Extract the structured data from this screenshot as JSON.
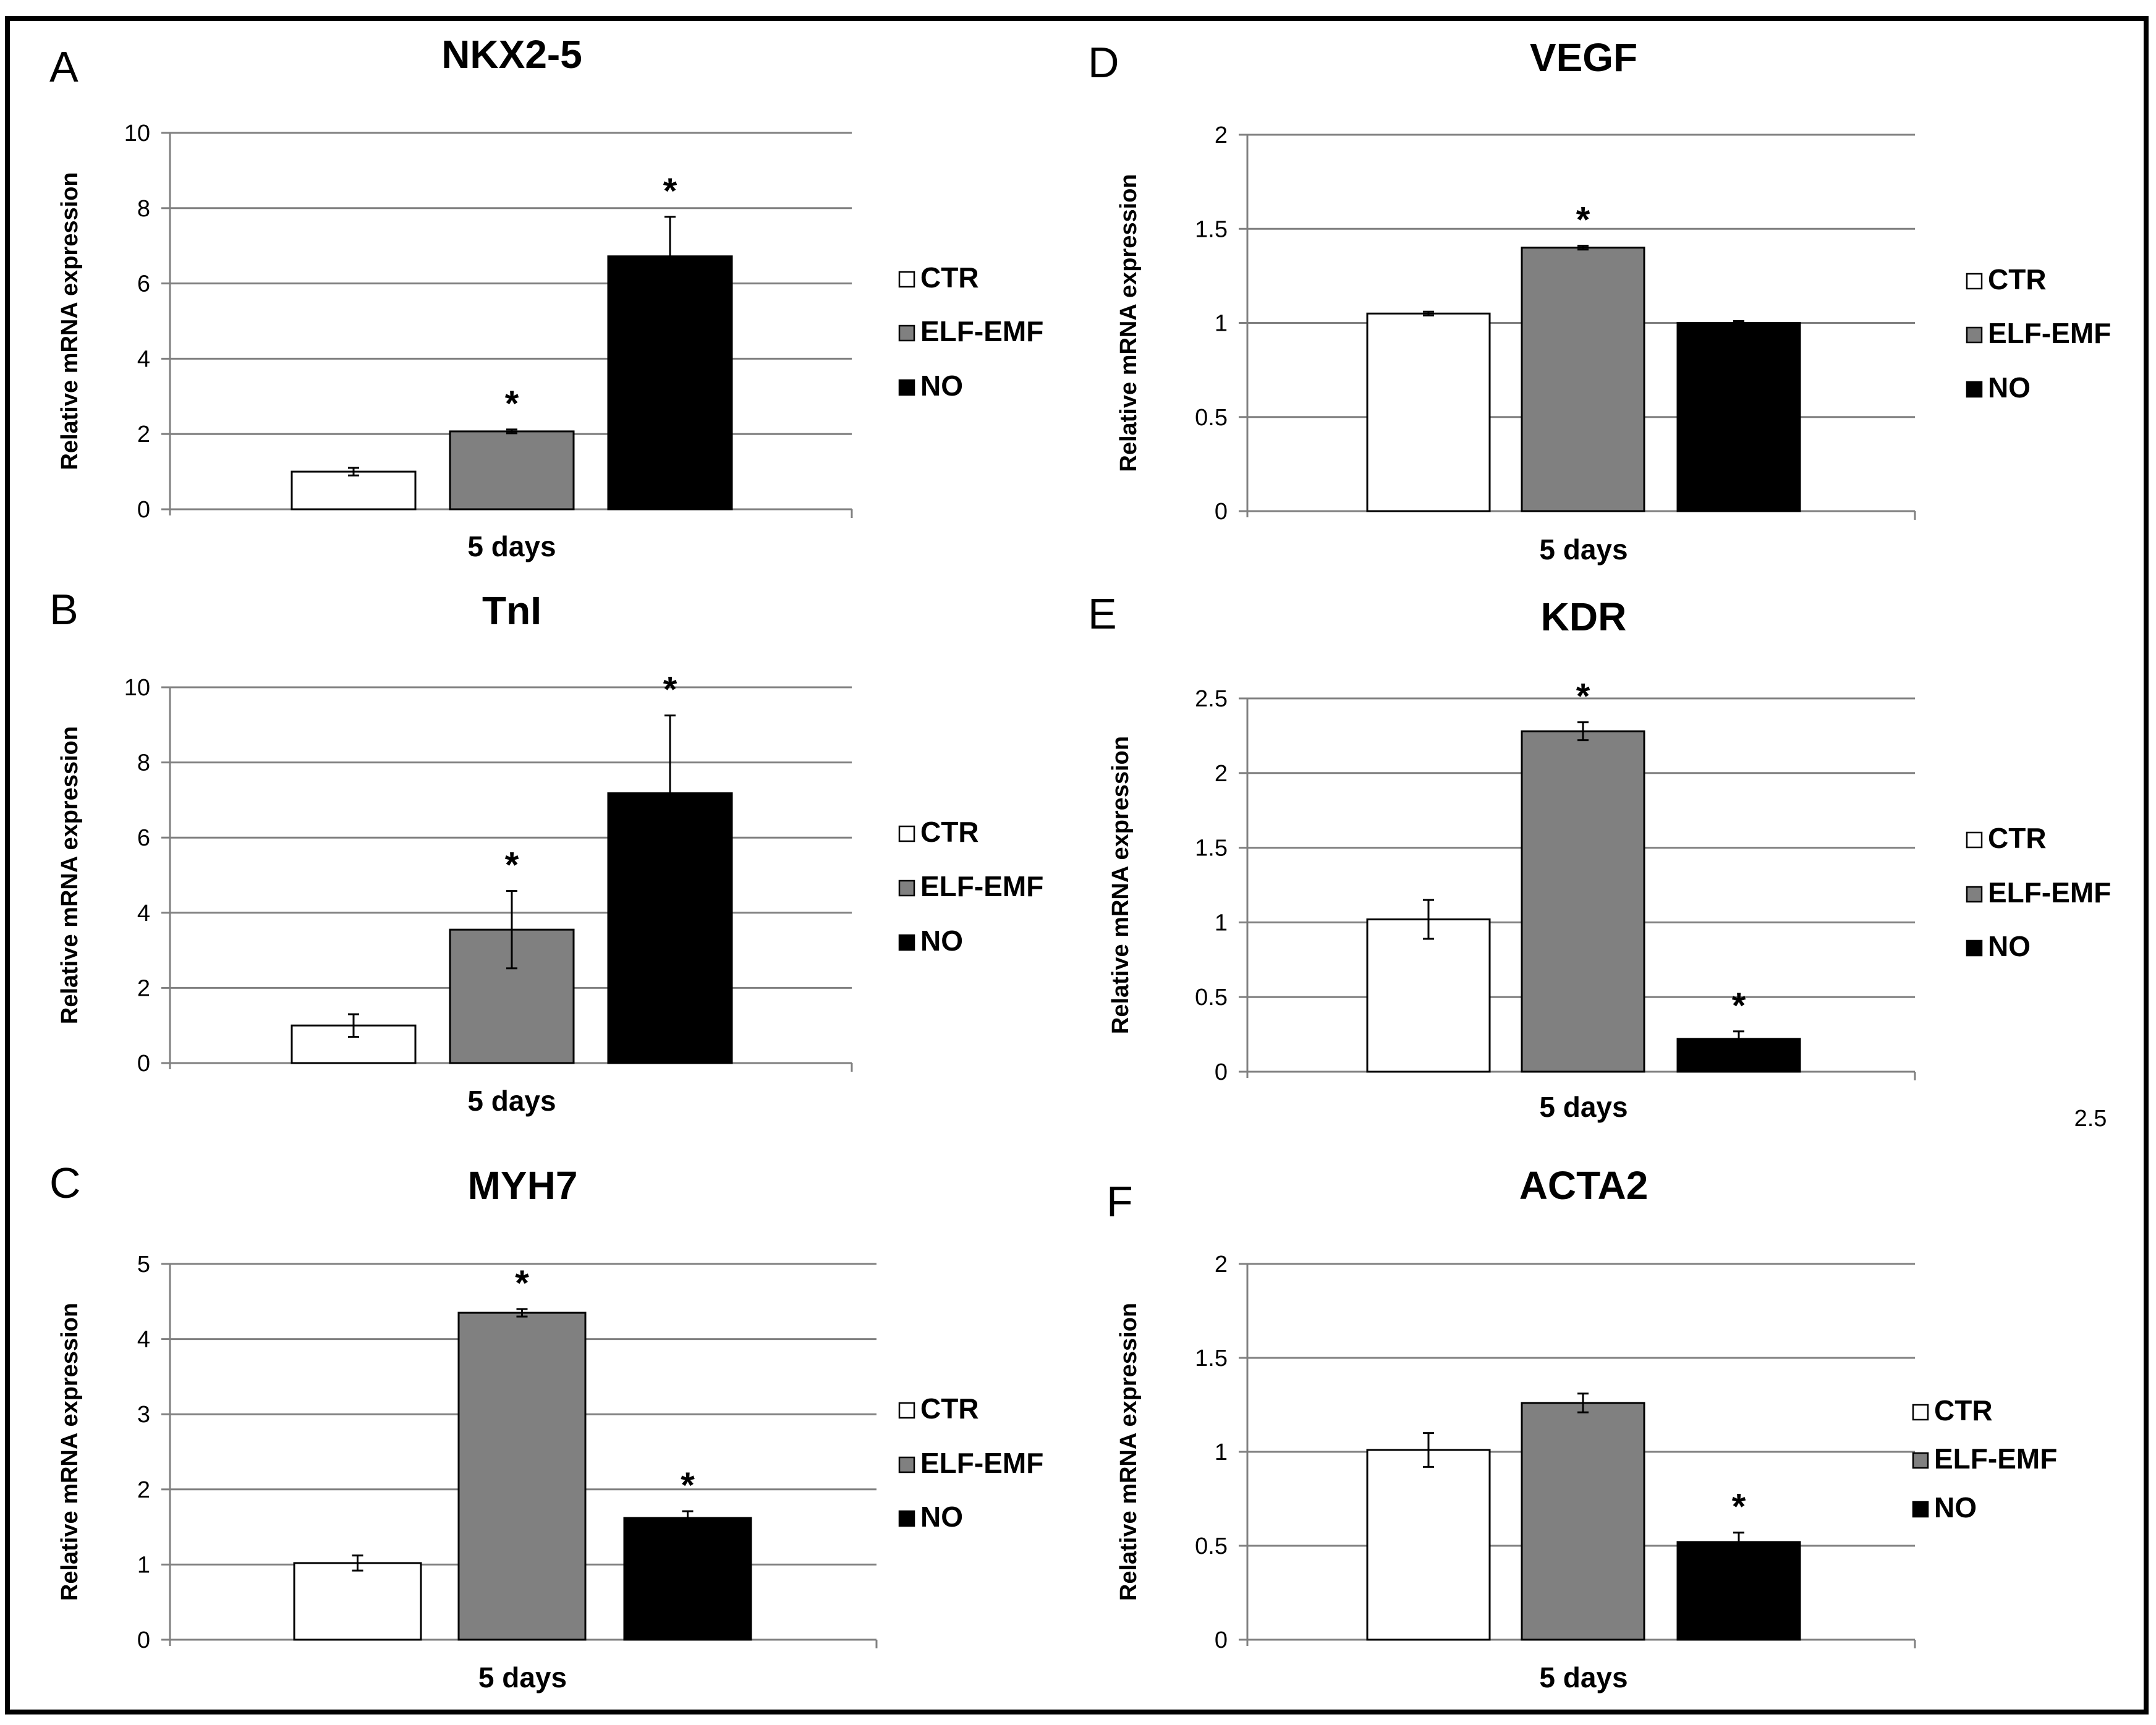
{
  "legend": {
    "labels": [
      "CTR",
      "ELF-EMF",
      "NO"
    ]
  },
  "colors": {
    "CTR": "#ffffff",
    "ELF-EMF": "#808080",
    "NO": "#000000",
    "axis": "#808080",
    "grid": "#808080"
  },
  "stray_text": "2.5",
  "chart_data": [
    {
      "panel": "A",
      "type": "bar",
      "title": "NKX2-5",
      "xlabel": "5 days",
      "ylabel": "Relative mRNA expression",
      "ylim": [
        0,
        10
      ],
      "ticks": [
        "0",
        "2",
        "4",
        "6",
        "8",
        "10"
      ],
      "grid": true,
      "legend": "right",
      "categories": [
        "CTR",
        "ELF-EMF",
        "NO"
      ],
      "values": [
        1.0,
        2.07,
        6.72
      ],
      "errors": [
        0.1,
        0.05,
        1.05
      ],
      "significant": [
        false,
        true,
        true
      ]
    },
    {
      "panel": "B",
      "type": "bar",
      "title": "TnI",
      "xlabel": "5 days",
      "ylabel": "Relative mRNA expression",
      "ylim": [
        0,
        10
      ],
      "ticks": [
        "0",
        "2",
        "4",
        "6",
        "8",
        "10"
      ],
      "grid": true,
      "legend": "right",
      "categories": [
        "CTR",
        "ELF-EMF",
        "NO"
      ],
      "values": [
        1.0,
        3.55,
        7.18
      ],
      "errors": [
        0.3,
        1.03,
        2.07
      ],
      "significant": [
        false,
        true,
        true
      ]
    },
    {
      "panel": "C",
      "type": "bar",
      "title": "MYH7",
      "xlabel": "5 days",
      "ylabel": "Relative mRNA expression",
      "ylim": [
        0,
        5
      ],
      "ticks": [
        "0",
        "1",
        "2",
        "3",
        "4",
        "5"
      ],
      "grid": true,
      "legend": "right",
      "categories": [
        "CTR",
        "ELF-EMF",
        "NO"
      ],
      "values": [
        1.02,
        4.35,
        1.62
      ],
      "errors": [
        0.1,
        0.05,
        0.09
      ],
      "significant": [
        false,
        true,
        true
      ]
    },
    {
      "panel": "D",
      "type": "bar",
      "title": "VEGF",
      "xlabel": "5 days",
      "ylabel": "Relative mRNA expression",
      "ylim": [
        0,
        2
      ],
      "ticks": [
        "0",
        "0.5",
        "1",
        "1.5",
        "2"
      ],
      "grid": true,
      "legend": "right",
      "categories": [
        "CTR",
        "ELF-EMF",
        "NO"
      ],
      "values": [
        1.05,
        1.4,
        1.0
      ],
      "errors": [
        0.01,
        0.01,
        0.01
      ],
      "significant": [
        false,
        true,
        false
      ]
    },
    {
      "panel": "E",
      "type": "bar",
      "title": "KDR",
      "xlabel": "5 days",
      "ylabel": "Relative mRNA expression",
      "ylim": [
        0,
        2.5
      ],
      "ticks": [
        "0",
        "0.5",
        "1",
        "1.5",
        "2",
        "2.5"
      ],
      "grid": true,
      "legend": "right",
      "categories": [
        "CTR",
        "ELF-EMF",
        "NO"
      ],
      "values": [
        1.02,
        2.28,
        0.22
      ],
      "errors": [
        0.13,
        0.06,
        0.05
      ],
      "significant": [
        false,
        true,
        true
      ]
    },
    {
      "panel": "F",
      "type": "bar",
      "title": "ACTA2",
      "xlabel": "5 days",
      "ylabel": "Relative mRNA expression",
      "ylim": [
        0,
        2
      ],
      "ticks": [
        "0",
        "0.5",
        "1",
        "1.5",
        "2"
      ],
      "grid": true,
      "legend": "right",
      "categories": [
        "CTR",
        "ELF-EMF",
        "NO"
      ],
      "values": [
        1.01,
        1.26,
        0.52
      ],
      "errors": [
        0.09,
        0.05,
        0.05
      ],
      "significant": [
        false,
        false,
        true
      ]
    }
  ]
}
